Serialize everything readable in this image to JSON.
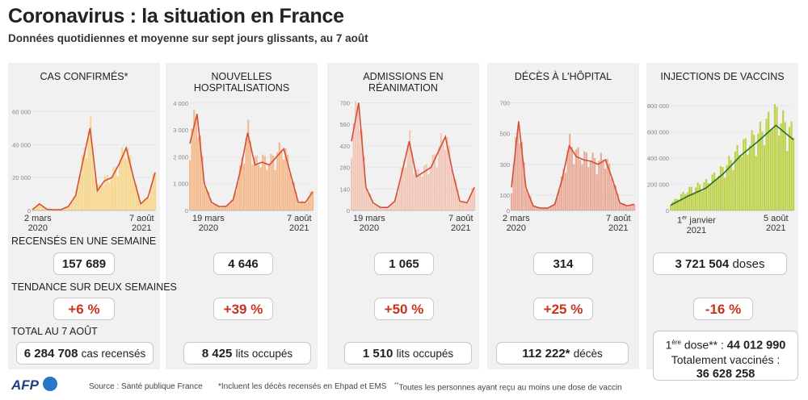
{
  "title": "Coronavirus : la situation en France",
  "subtitle": "Données quotidiennes et moyenne sur sept jours glissants, au 7 août",
  "row_labels": {
    "weekly": "RECENSÉS EN UNE SEMAINE",
    "trend": "TENDANCE SUR DEUX SEMAINES",
    "total": "TOTAL AU 7 AOÛT"
  },
  "panels": [
    {
      "title": "CAS CONFIRMÉS*",
      "x_start": "2 mars",
      "x_start_year": "2020",
      "x_end": "7 août",
      "x_end_year": "2021",
      "weekly": "157 689",
      "weekly_unit": "",
      "trend": "+6 %",
      "total": "6 284 708",
      "total_unit": "cas recensés"
    },
    {
      "title": "NOUVELLES HOSPITALISATIONS",
      "x_start": "19 mars",
      "x_start_year": "2020",
      "x_end": "7 août",
      "x_end_year": "2021",
      "weekly": "4 646",
      "weekly_unit": "",
      "trend": "+39 %",
      "total": "8 425",
      "total_unit": "lits occupés"
    },
    {
      "title": "ADMISSIONS EN RÉANIMATION",
      "x_start": "19 mars",
      "x_start_year": "2020",
      "x_end": "7 août",
      "x_end_year": "2021",
      "weekly": "1 065",
      "weekly_unit": "",
      "trend": "+50 %",
      "total": "1 510",
      "total_unit": "lits occupés"
    },
    {
      "title": "DÉCÈS À L'HÔPITAL",
      "x_start": "2 mars",
      "x_start_year": "2020",
      "x_end": "7 août",
      "x_end_year": "2021",
      "weekly": "314",
      "weekly_unit": "",
      "trend": "+25 %",
      "total": "112 222*",
      "total_unit": "décès"
    },
    {
      "title": "INJECTIONS DE VACCINS",
      "x_start_sup": "er",
      "x_start": "1",
      "x_start_rest": " janvier",
      "x_start_year": "2021",
      "x_end": "5 août",
      "x_end_year": "2021",
      "weekly": "3 721 504",
      "weekly_unit": "doses",
      "trend": "-16 %",
      "first_dose_label": "1",
      "first_dose_sup": "ère",
      "first_dose_rest": " dose** : ",
      "first_dose_value": "44 012 990",
      "full_label": "Totalement vaccinés :",
      "full_value": "36 628 258"
    }
  ],
  "footer": {
    "logo": "AFP",
    "source": "Source : Santé publique France",
    "note1": "*Incluent les décès recensés en Ehpad et EMS",
    "note2_sup": "**",
    "note2": "Toutes les personnes ayant reçu au moins une dose de vaccin"
  },
  "colors": {
    "line": "#d4503a",
    "cases_fill": "#f7d27a",
    "hosp_fill": "#f4b07a",
    "icu_fill": "#f2c0ad",
    "deaths_fill": "#e8a08a",
    "vax_fill": "#b5cc2e",
    "vax_line": "#2e6b2e",
    "trend_red": "#c8321f"
  },
  "chart_data": [
    {
      "type": "area",
      "title": "CAS CONFIRMÉS*",
      "x": [
        "2020-03",
        "2020-04",
        "2020-05",
        "2020-06",
        "2020-07",
        "2020-08",
        "2020-09",
        "2020-10",
        "2020-11",
        "2020-12",
        "2021-01",
        "2021-02",
        "2021-03",
        "2021-04",
        "2021-05",
        "2021-06",
        "2021-07",
        "2021-08"
      ],
      "series": [
        {
          "values": [
            500,
            4000,
            800,
            400,
            600,
            2500,
            9000,
            30000,
            50000,
            12000,
            18000,
            20000,
            28000,
            38000,
            20000,
            4000,
            8000,
            23000
          ]
        }
      ],
      "yticks": [
        0,
        20000,
        40000,
        60000
      ],
      "ytick_labels": [
        "0",
        "20 000",
        "40 000",
        "60 000"
      ],
      "ylim": [
        0,
        70000
      ]
    },
    {
      "type": "area",
      "title": "NOUVELLES HOSPITALISATIONS",
      "x": [
        "2020-03",
        "2020-04",
        "2020-05",
        "2020-06",
        "2020-07",
        "2020-08",
        "2020-09",
        "2020-10",
        "2020-11",
        "2020-12",
        "2021-01",
        "2021-02",
        "2021-03",
        "2021-04",
        "2021-05",
        "2021-06",
        "2021-07",
        "2021-08"
      ],
      "series": [
        {
          "values": [
            2500,
            3600,
            1000,
            300,
            150,
            150,
            400,
            1500,
            2900,
            1700,
            1800,
            1700,
            2000,
            2300,
            1300,
            300,
            300,
            700
          ]
        }
      ],
      "yticks": [
        0,
        1000,
        2000,
        3000,
        4000
      ],
      "ytick_labels": [
        "0",
        "1 000",
        "2 000",
        "3 000",
        "4 000"
      ],
      "ylim": [
        0,
        4300
      ]
    },
    {
      "type": "area",
      "title": "ADMISSIONS EN RÉANIMATION",
      "x": [
        "2020-03",
        "2020-04",
        "2020-05",
        "2020-06",
        "2020-07",
        "2020-08",
        "2020-09",
        "2020-10",
        "2020-11",
        "2020-12",
        "2021-01",
        "2021-02",
        "2021-03",
        "2021-04",
        "2021-05",
        "2021-06",
        "2021-07",
        "2021-08"
      ],
      "series": [
        {
          "values": [
            450,
            700,
            150,
            50,
            20,
            20,
            60,
            250,
            450,
            220,
            250,
            280,
            380,
            480,
            250,
            60,
            50,
            150
          ]
        }
      ],
      "yticks": [
        0,
        140,
        280,
        420,
        560,
        700
      ],
      "ytick_labels": [
        "0",
        "140",
        "280",
        "420",
        "560",
        "700"
      ],
      "ylim": [
        0,
        750
      ]
    },
    {
      "type": "area",
      "title": "DÉCÈS À L'HÔPITAL",
      "x": [
        "2020-03",
        "2020-04",
        "2020-05",
        "2020-06",
        "2020-07",
        "2020-08",
        "2020-09",
        "2020-10",
        "2020-11",
        "2020-12",
        "2021-01",
        "2021-02",
        "2021-03",
        "2021-04",
        "2021-05",
        "2021-06",
        "2021-07",
        "2021-08"
      ],
      "series": [
        {
          "values": [
            150,
            580,
            150,
            30,
            15,
            15,
            40,
            200,
            420,
            350,
            330,
            320,
            300,
            330,
            200,
            50,
            30,
            40
          ]
        }
      ],
      "yticks": [
        0,
        100,
        300,
        500,
        700
      ],
      "ytick_labels": [
        "0",
        "100",
        "300",
        "500",
        "700"
      ],
      "ylim": [
        0,
        750
      ]
    },
    {
      "type": "area",
      "title": "INJECTIONS DE VACCINS",
      "x": [
        "2021-01",
        "2021-02",
        "2021-03",
        "2021-04",
        "2021-05",
        "2021-06",
        "2021-07",
        "2021-08"
      ],
      "series": [
        {
          "values": [
            50000,
            150000,
            200000,
            300000,
            450000,
            550000,
            700000,
            550000
          ]
        },
        {
          "values": [
            40000,
            110000,
            170000,
            280000,
            420000,
            530000,
            650000,
            540000
          ]
        }
      ],
      "yticks": [
        0,
        200000,
        400000,
        600000,
        800000
      ],
      "ytick_labels": [
        "0",
        "200 000",
        "400 000",
        "600 000",
        "800 000"
      ],
      "ylim": [
        0,
        880000
      ]
    }
  ]
}
